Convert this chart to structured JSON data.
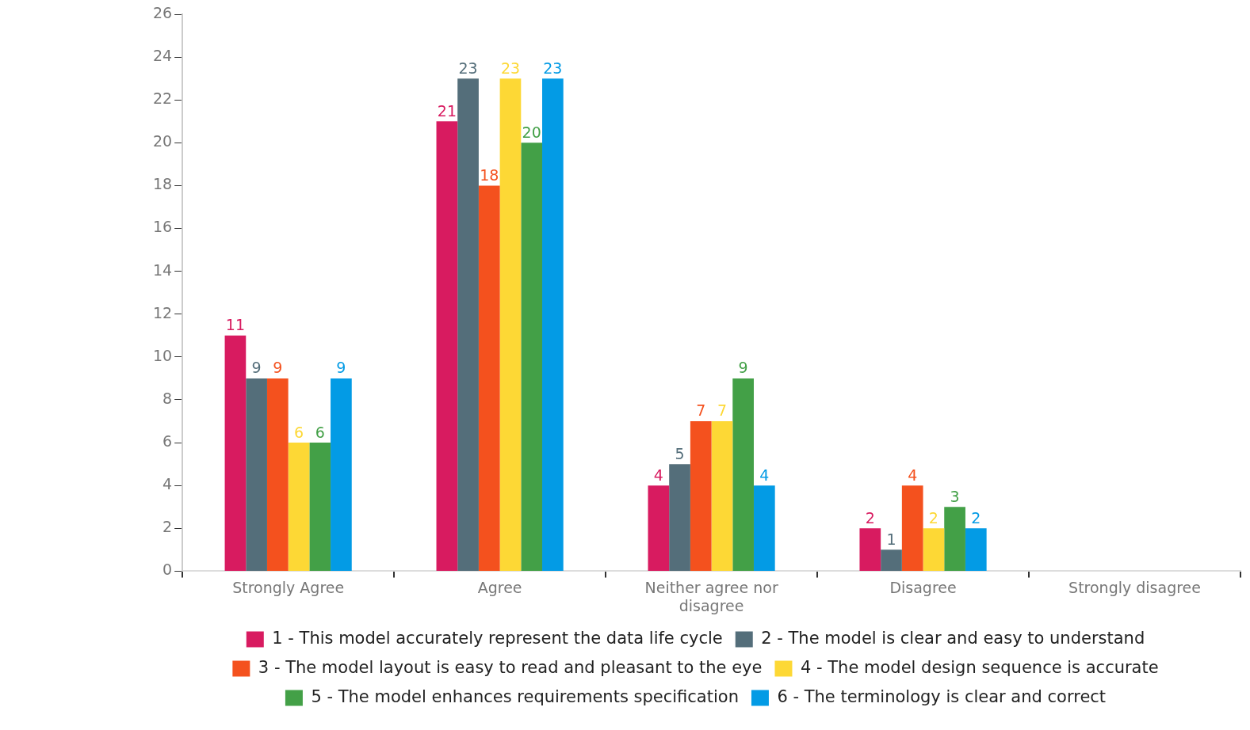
{
  "chart_data": {
    "type": "bar",
    "categories": [
      "Strongly Agree",
      "Agree",
      "Neither agree nor disagree",
      "Disagree",
      "Strongly disagree"
    ],
    "series": [
      {
        "name": "1 - This model accurately represent the data life cycle",
        "color": "#d81b60",
        "values": [
          11,
          21,
          4,
          2,
          0
        ],
        "value_labels": [
          "11",
          "21",
          "4",
          "2",
          null
        ]
      },
      {
        "name": "2 - The model is clear and easy to understand",
        "color": "#546e7a",
        "values": [
          9,
          23,
          5,
          1,
          0
        ],
        "value_labels": [
          "9",
          "23",
          "5",
          "1",
          null
        ]
      },
      {
        "name": "3 - The model layout is easy to read and pleasant to the eye",
        "color": "#f4511e",
        "values": [
          9,
          18,
          7,
          4,
          0
        ],
        "value_labels": [
          "9",
          "18",
          "7",
          "4",
          null
        ]
      },
      {
        "name": "4 - The model design sequence is accurate",
        "color": "#fdd835",
        "values": [
          6,
          23,
          7,
          2,
          0
        ],
        "value_labels": [
          "6",
          "23",
          "7",
          "2",
          null
        ]
      },
      {
        "name": "5 - The model enhances requirements specification",
        "color": "#43a047",
        "values": [
          6,
          20,
          9,
          3,
          0
        ],
        "value_labels": [
          "6",
          "20",
          "9",
          "3",
          null
        ]
      },
      {
        "name": "6 - The terminology is clear and correct",
        "color": "#039be5",
        "values": [
          9,
          23,
          4,
          2,
          0
        ],
        "value_labels": [
          "9",
          "23",
          "4",
          "2",
          null
        ]
      }
    ],
    "ylim": [
      0,
      26
    ],
    "yticks": [
      0,
      2,
      4,
      6,
      8,
      10,
      12,
      14,
      16,
      18,
      20,
      22,
      24,
      26
    ],
    "grid": false,
    "legend": "bottom"
  }
}
